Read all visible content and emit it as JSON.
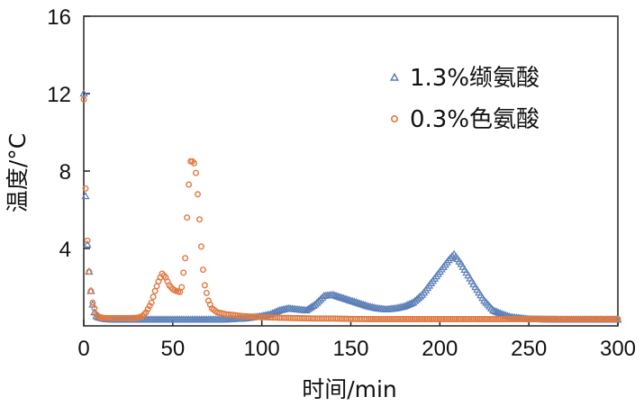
{
  "chart_data": {
    "type": "scatter",
    "xlabel": "时间/min",
    "ylabel": "温度/°C",
    "xlim": [
      0,
      300
    ],
    "ylim": [
      0,
      16
    ],
    "xticks": [
      0,
      50,
      100,
      150,
      200,
      250,
      300
    ],
    "yticks": [
      4,
      8,
      12,
      16
    ],
    "grid": false,
    "legend_position": "top-right",
    "series": [
      {
        "name": "1.3%缬氨酸",
        "marker": "triangle",
        "color": "#5b7fb8",
        "x": [
          0,
          1,
          2,
          3,
          4,
          5,
          6,
          7,
          8,
          9,
          10,
          12,
          15,
          20,
          30,
          40,
          50,
          60,
          70,
          80,
          90,
          100,
          105,
          110,
          115,
          120,
          125,
          130,
          135,
          140,
          145,
          150,
          155,
          160,
          165,
          170,
          175,
          180,
          185,
          190,
          195,
          200,
          205,
          208,
          212,
          216,
          220,
          225,
          230,
          235,
          240,
          250,
          260,
          270,
          280,
          290,
          300
        ],
        "y": [
          12.0,
          6.7,
          4.2,
          2.8,
          1.8,
          1.1,
          0.7,
          0.5,
          0.45,
          0.42,
          0.4,
          0.35,
          0.33,
          0.32,
          0.32,
          0.32,
          0.32,
          0.32,
          0.32,
          0.33,
          0.38,
          0.5,
          0.6,
          0.8,
          0.9,
          0.85,
          0.8,
          1.1,
          1.55,
          1.6,
          1.45,
          1.3,
          1.15,
          1.0,
          0.9,
          0.85,
          0.9,
          1.0,
          1.2,
          1.6,
          2.2,
          2.8,
          3.4,
          3.7,
          3.2,
          2.6,
          2.0,
          1.3,
          0.8,
          0.6,
          0.45,
          0.35,
          0.33,
          0.32,
          0.32,
          0.32,
          0.32
        ]
      },
      {
        "name": "0.3%色氨酸",
        "marker": "circle",
        "color": "#e07b43",
        "x": [
          0,
          1,
          2,
          3,
          4,
          5,
          6,
          7,
          8,
          9,
          10,
          12,
          15,
          20,
          25,
          30,
          33,
          35,
          38,
          40,
          42,
          44,
          46,
          48,
          50,
          52,
          54,
          55,
          57,
          58,
          59,
          60,
          61,
          62,
          63,
          64,
          65,
          66,
          67,
          68,
          70,
          72,
          75,
          80,
          85,
          90,
          100,
          110,
          120,
          130,
          140,
          150,
          160,
          180,
          200,
          220,
          240,
          260,
          280,
          300
        ],
        "y": [
          11.7,
          7.1,
          4.4,
          2.8,
          1.8,
          1.2,
          0.9,
          0.6,
          0.5,
          0.45,
          0.42,
          0.4,
          0.4,
          0.4,
          0.4,
          0.42,
          0.5,
          0.7,
          1.2,
          1.8,
          2.3,
          2.7,
          2.5,
          2.1,
          1.9,
          1.8,
          1.75,
          2.0,
          3.5,
          5.6,
          7.3,
          8.5,
          8.5,
          8.4,
          7.9,
          6.8,
          5.5,
          4.1,
          2.9,
          2.1,
          1.3,
          0.9,
          0.7,
          0.6,
          0.55,
          0.5,
          0.45,
          0.42,
          0.4,
          0.38,
          0.38,
          0.36,
          0.35,
          0.35,
          0.35,
          0.35,
          0.35,
          0.35,
          0.35,
          0.35
        ]
      }
    ]
  }
}
